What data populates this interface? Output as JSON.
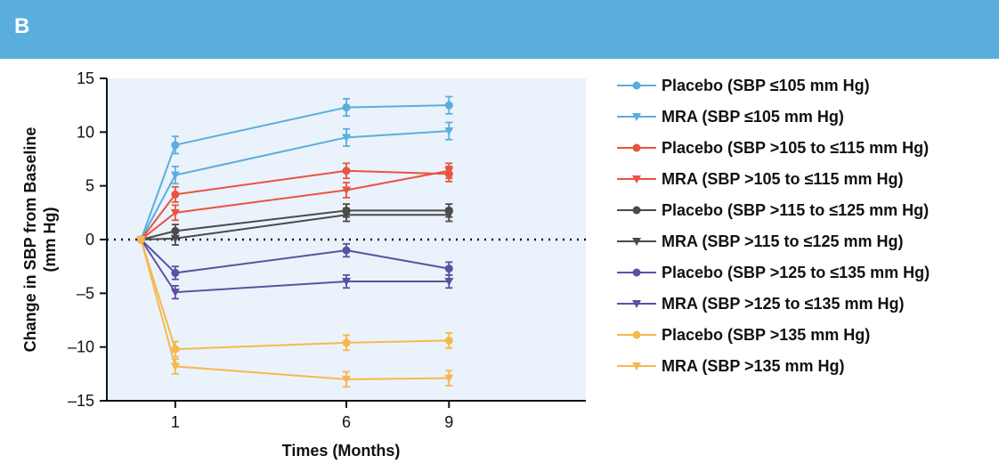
{
  "panel": {
    "label": "B"
  },
  "chart_data": {
    "type": "line",
    "xlabel": "Times (Months)",
    "ylabel": "Change in SBP from Baseline (mm Hg)",
    "ylabel_lines": [
      "Change in SBP from Baseline",
      "(mm Hg)"
    ],
    "x_ticks": [
      1,
      6,
      9
    ],
    "y_ticks": [
      15,
      10,
      5,
      0,
      -5,
      -10,
      -15
    ],
    "xlim": [
      -1,
      13
    ],
    "ylim": [
      -15,
      15
    ],
    "baseline_x": 0,
    "reference_line_y": 0,
    "legend_position": "right",
    "series": [
      {
        "name": "Placebo (SBP ≤105 mm Hg)",
        "color": "#5aaede",
        "marker": "circle",
        "x": [
          0,
          1,
          6,
          9
        ],
        "y": [
          0,
          8.8,
          12.3,
          12.5
        ],
        "err": [
          0,
          0.8,
          0.8,
          0.8
        ]
      },
      {
        "name": "MRA (SBP ≤105 mm Hg)",
        "color": "#5aaede",
        "marker": "triangle-down",
        "x": [
          0,
          1,
          6,
          9
        ],
        "y": [
          0,
          6.0,
          9.5,
          10.1
        ],
        "err": [
          0,
          0.8,
          0.8,
          0.8
        ]
      },
      {
        "name": "Placebo (SBP >105 to ≤115 mm Hg)",
        "color": "#e9533f",
        "marker": "circle",
        "x": [
          0,
          1,
          6,
          9
        ],
        "y": [
          0,
          4.2,
          6.4,
          6.1
        ],
        "err": [
          0,
          0.7,
          0.7,
          0.7
        ]
      },
      {
        "name": "MRA (SBP >105 to ≤115 mm Hg)",
        "color": "#e9533f",
        "marker": "triangle-down",
        "x": [
          0,
          1,
          6,
          9
        ],
        "y": [
          0,
          2.5,
          4.6,
          6.4
        ],
        "err": [
          0,
          0.7,
          0.7,
          0.7
        ]
      },
      {
        "name": "Placebo (SBP >115 to ≤125 mm Hg)",
        "color": "#4a4a4a",
        "marker": "circle",
        "x": [
          0,
          1,
          6,
          9
        ],
        "y": [
          0,
          0.8,
          2.7,
          2.7
        ],
        "err": [
          0,
          0.6,
          0.6,
          0.6
        ]
      },
      {
        "name": "MRA (SBP >115 to ≤125 mm Hg)",
        "color": "#4a4a4a",
        "marker": "triangle-down",
        "x": [
          0,
          1,
          6,
          9
        ],
        "y": [
          0,
          0.1,
          2.3,
          2.3
        ],
        "err": [
          0,
          0.6,
          0.6,
          0.6
        ]
      },
      {
        "name": "Placebo (SBP >125 to ≤135 mm Hg)",
        "color": "#5b51a1",
        "marker": "circle",
        "x": [
          0,
          1,
          6,
          9
        ],
        "y": [
          0,
          -3.1,
          -1.0,
          -2.7
        ],
        "err": [
          0,
          0.6,
          0.6,
          0.6
        ]
      },
      {
        "name": "MRA (SBP >125 to ≤135 mm Hg)",
        "color": "#5b51a1",
        "marker": "triangle-down",
        "x": [
          0,
          1,
          6,
          9
        ],
        "y": [
          0,
          -4.9,
          -3.9,
          -3.9
        ],
        "err": [
          0,
          0.6,
          0.6,
          0.6
        ]
      },
      {
        "name": "Placebo (SBP >135 mm Hg)",
        "color": "#f7b84b",
        "marker": "circle",
        "x": [
          0,
          1,
          6,
          9
        ],
        "y": [
          0,
          -10.2,
          -9.6,
          -9.4
        ],
        "err": [
          0,
          0.7,
          0.7,
          0.7
        ]
      },
      {
        "name": "MRA (SBP >135 mm Hg)",
        "color": "#f7b84b",
        "marker": "triangle-down",
        "x": [
          0,
          1,
          6,
          9
        ],
        "y": [
          0,
          -11.8,
          -13.0,
          -12.9
        ],
        "err": [
          0,
          0.7,
          0.7,
          0.7
        ]
      }
    ],
    "plot_background": "#eaf2fb"
  }
}
